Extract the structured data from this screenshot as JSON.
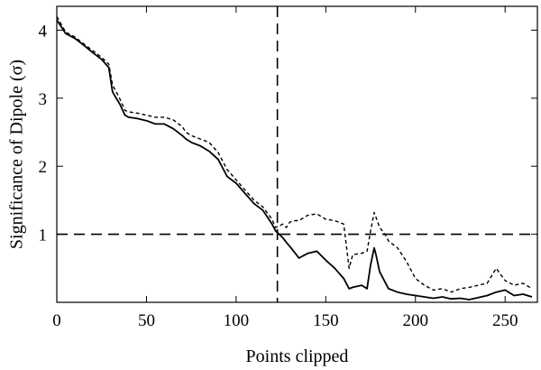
{
  "chart_data": {
    "type": "line",
    "xlabel": "Points clipped",
    "ylabel": "Significance of Dipole (σ)",
    "xlim": [
      0,
      268
    ],
    "ylim": [
      0,
      4.35
    ],
    "xticks": [
      0,
      50,
      100,
      150,
      200,
      250
    ],
    "yticks": [
      1,
      2,
      3,
      4
    ],
    "grid": false,
    "reference_lines": [
      {
        "orientation": "horizontal",
        "value": 1,
        "style": "dashed"
      },
      {
        "orientation": "vertical",
        "value": 123,
        "style": "dashed"
      }
    ],
    "series": [
      {
        "style": "solid",
        "color": "#000000",
        "x": [
          0,
          5,
          10,
          15,
          20,
          25,
          29,
          31,
          32,
          35,
          38,
          40,
          45,
          50,
          55,
          60,
          65,
          70,
          72,
          75,
          80,
          85,
          90,
          95,
          100,
          105,
          110,
          115,
          120,
          122,
          124,
          126,
          128,
          130,
          133,
          135,
          140,
          145,
          150,
          155,
          160,
          163,
          165,
          170,
          173,
          175,
          177,
          178,
          180,
          183,
          185,
          190,
          195,
          200,
          205,
          210,
          215,
          220,
          225,
          230,
          235,
          240,
          245,
          250,
          255,
          260,
          265
        ],
        "y": [
          4.15,
          3.95,
          3.88,
          3.78,
          3.67,
          3.57,
          3.45,
          3.1,
          3.05,
          2.92,
          2.75,
          2.72,
          2.7,
          2.67,
          2.62,
          2.62,
          2.55,
          2.45,
          2.4,
          2.35,
          2.3,
          2.22,
          2.1,
          1.85,
          1.75,
          1.6,
          1.45,
          1.35,
          1.15,
          1.05,
          1.0,
          0.95,
          0.88,
          0.82,
          0.72,
          0.65,
          0.72,
          0.75,
          0.62,
          0.5,
          0.35,
          0.2,
          0.22,
          0.25,
          0.2,
          0.55,
          0.8,
          0.7,
          0.45,
          0.3,
          0.2,
          0.15,
          0.12,
          0.1,
          0.08,
          0.06,
          0.08,
          0.05,
          0.06,
          0.04,
          0.07,
          0.1,
          0.15,
          0.18,
          0.1,
          0.12,
          0.08
        ]
      },
      {
        "style": "dashed",
        "color": "#000000",
        "x": [
          0,
          5,
          10,
          15,
          20,
          25,
          29,
          31,
          32,
          35,
          38,
          40,
          45,
          50,
          55,
          60,
          65,
          70,
          72,
          75,
          80,
          85,
          90,
          95,
          100,
          105,
          110,
          115,
          120,
          122,
          124,
          126,
          128,
          130,
          133,
          135,
          140,
          145,
          150,
          155,
          160,
          163,
          165,
          170,
          173,
          175,
          177,
          178,
          180,
          183,
          185,
          190,
          195,
          200,
          205,
          210,
          215,
          220,
          225,
          230,
          235,
          240,
          245,
          250,
          255,
          260,
          265
        ],
        "y": [
          4.2,
          3.97,
          3.9,
          3.8,
          3.7,
          3.6,
          3.5,
          3.2,
          3.15,
          3.0,
          2.82,
          2.8,
          2.78,
          2.75,
          2.72,
          2.72,
          2.68,
          2.58,
          2.5,
          2.45,
          2.4,
          2.35,
          2.2,
          1.95,
          1.8,
          1.65,
          1.5,
          1.4,
          1.22,
          1.1,
          1.12,
          1.15,
          1.1,
          1.18,
          1.2,
          1.2,
          1.28,
          1.3,
          1.22,
          1.2,
          1.15,
          0.5,
          0.7,
          0.72,
          0.75,
          1.05,
          1.32,
          1.25,
          1.1,
          1.0,
          0.9,
          0.8,
          0.6,
          0.35,
          0.25,
          0.18,
          0.2,
          0.15,
          0.2,
          0.22,
          0.25,
          0.28,
          0.5,
          0.32,
          0.25,
          0.28,
          0.2
        ]
      }
    ]
  }
}
